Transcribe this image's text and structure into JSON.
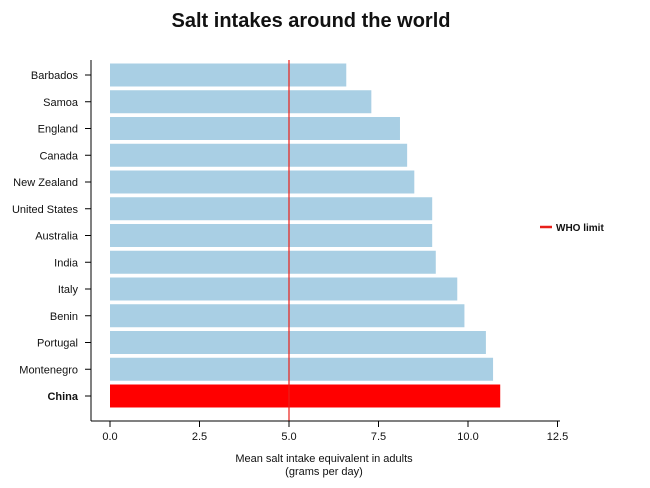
{
  "chart_data": {
    "type": "bar",
    "orientation": "horizontal",
    "title": "Salt intakes around the world",
    "xlabel_line1": "Mean salt intake equivalent in adults",
    "xlabel_line2": "(grams per day)",
    "categories": [
      "Barbados",
      "Samoa",
      "England",
      "Canada",
      "New Zealand",
      "United States",
      "Australia",
      "India",
      "Italy",
      "Benin",
      "Portugal",
      "Montenegro",
      "China"
    ],
    "values": [
      6.6,
      7.3,
      8.1,
      8.3,
      8.5,
      9.0,
      9.0,
      9.1,
      9.7,
      9.9,
      10.5,
      10.7,
      10.9
    ],
    "highlight_category": "China",
    "xlim": [
      0,
      12.5
    ],
    "xticks": [
      "0.0",
      "2.5",
      "5.0",
      "7.5",
      "10.0",
      "12.5"
    ],
    "xtick_values": [
      0,
      2.5,
      5.0,
      7.5,
      10.0,
      12.5
    ],
    "reference_line": {
      "name": "WHO limit",
      "value": 5.0,
      "color": "#e8201a"
    },
    "bar_color": "#a9cfe4",
    "highlight_color": "#ff0000",
    "grid": false,
    "legend_position": "right"
  }
}
